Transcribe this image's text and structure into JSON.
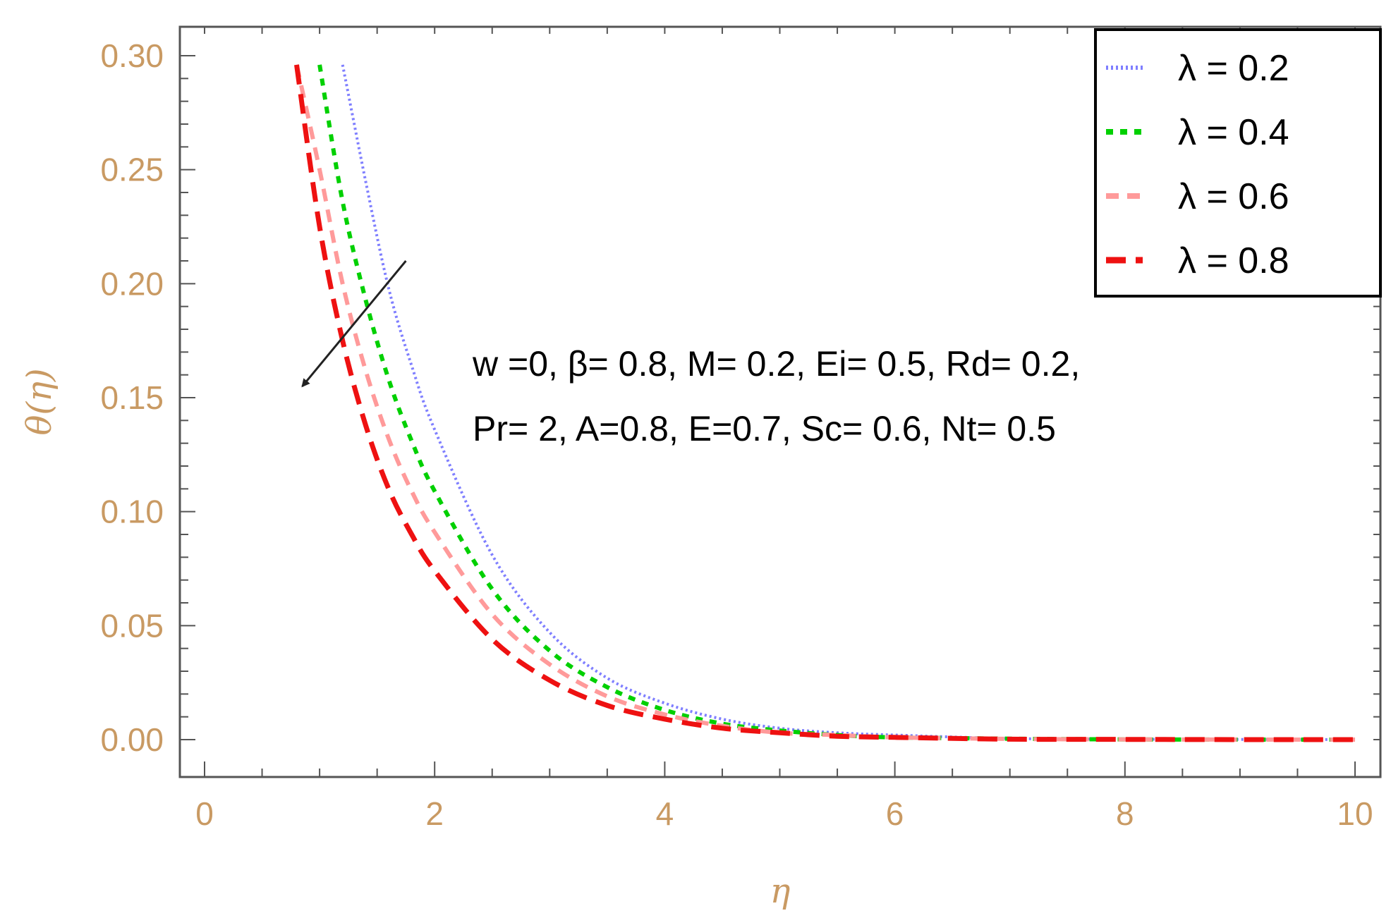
{
  "chart_data": {
    "type": "line",
    "xlabel": "η",
    "ylabel": "θ(η)",
    "xlim": [
      0,
      10
    ],
    "ylim": [
      0,
      0.3
    ],
    "xticks": [
      "0",
      "2",
      "4",
      "6",
      "8",
      "10"
    ],
    "yticks": [
      "0.00",
      "0.05",
      "0.10",
      "0.15",
      "0.20",
      "0.25",
      "0.30"
    ],
    "x": [
      0.8,
      1.0,
      1.2,
      1.4,
      1.6,
      1.8,
      2.0,
      2.5,
      3.0,
      3.5,
      4.0,
      4.5,
      5.0,
      5.5,
      6.0,
      7.0,
      8.0,
      9.0,
      10.0
    ],
    "series": [
      {
        "name": "λ = 0.2",
        "color": "#7f7fff",
        "dash": "dotted",
        "values": [
          null,
          null,
          0.296,
          0.245,
          0.198,
          0.164,
          0.136,
          0.081,
          0.047,
          0.027,
          0.016,
          0.009,
          0.005,
          0.003,
          0.002,
          0.0005,
          0.0002,
          0.0001,
          0.0
        ]
      },
      {
        "name": "λ = 0.4",
        "color": "#00d000",
        "dash": "dashed-short",
        "values": [
          null,
          0.296,
          0.236,
          0.193,
          0.158,
          0.131,
          0.109,
          0.066,
          0.039,
          0.023,
          0.013,
          0.007,
          0.004,
          0.002,
          0.001,
          0.0004,
          0.0001,
          0.0,
          0.0
        ]
      },
      {
        "name": "λ = 0.6",
        "color": "#ff9a9a",
        "dash": "dashed",
        "values": [
          0.296,
          0.25,
          0.2,
          0.162,
          0.132,
          0.109,
          0.091,
          0.055,
          0.033,
          0.019,
          0.011,
          0.006,
          0.003,
          0.002,
          0.001,
          0.0003,
          0.0001,
          0.0,
          0.0
        ]
      },
      {
        "name": "λ = 0.8",
        "color": "#ee1111",
        "dash": "dashed-long",
        "values": [
          0.296,
          0.225,
          0.175,
          0.138,
          0.11,
          0.09,
          0.074,
          0.044,
          0.026,
          0.015,
          0.009,
          0.005,
          0.003,
          0.0015,
          0.001,
          0.0002,
          0.0001,
          0.0,
          0.0
        ]
      }
    ],
    "annotations": [
      "w =0, β= 0.8, M= 0.2, Ei= 0.5, Rd= 0.2,",
      "Pr= 2, A=0.8, E=0.7, Sc= 0.6, Nt= 0.5"
    ],
    "arrow": {
      "from": [
        1.75,
        0.21
      ],
      "to": [
        0.85,
        0.155
      ]
    },
    "legend_position": "top-right",
    "grid": false
  }
}
